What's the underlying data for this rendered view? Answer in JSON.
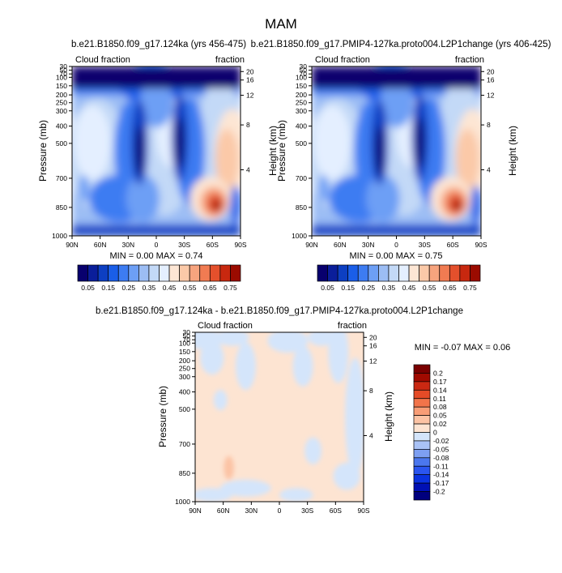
{
  "title": "MAM",
  "colors": {
    "cloud_scale": [
      "#08006e",
      "#0a1e9a",
      "#0d3fc2",
      "#1a5ee8",
      "#3d7cf2",
      "#6d9ff5",
      "#9cbdf4",
      "#c3d9f7",
      "#e4efff",
      "#fde6d4",
      "#fbc9a8",
      "#f7a47e",
      "#f17b52",
      "#e4502c",
      "#c8280f",
      "#9b0b00",
      "#6b0000"
    ],
    "diff_scale": [
      "#00007e",
      "#0010b4",
      "#0a32e0",
      "#2a55f0",
      "#4b77ee",
      "#7d9ff2",
      "#a9c2f6",
      "#d4e5fb",
      "#fde4d2",
      "#fcc3a4",
      "#f89d76",
      "#f2744a",
      "#e54b27",
      "#ca2812",
      "#a00a00",
      "#7a0000"
    ]
  },
  "panels": [
    {
      "id": "case",
      "header": "b.e21.B1850.f09_g17.124ka (yrs 456-475)",
      "left_label": "Cloud fraction",
      "right_label": "fraction",
      "ylabel": "Pressure (mb)",
      "y2label": "Height (km)",
      "stats": "MIN =   0.00  MAX =   0.74"
    },
    {
      "id": "test",
      "header": "b.e21.B1850.f09_g17.PMIP4-127ka.proto004.L2P1change (yrs 406-425)",
      "left_label": "Cloud fraction",
      "right_label": "fraction",
      "ylabel": "Pressure (mb)",
      "y2label": "Height (km)",
      "stats": "MIN =   0.00  MAX =   0.75"
    },
    {
      "id": "diff",
      "header": "b.e21.B1850.f09_g17.124ka - b.e21.B1850.f09_g17.PMIP4-127ka.proto004.L2P1change",
      "left_label": "Cloud fraction",
      "right_label": "fraction",
      "ylabel": "Pressure (mb)",
      "y2label": "Height (km)",
      "stats": "MIN =  -0.07  MAX =   0.06"
    }
  ],
  "chart_data": [
    {
      "type": "heatmap",
      "title": "b.e21.B1850.f09_g17.124ka (yrs 456-475)",
      "xlabel": "",
      "ylabel": "Pressure (mb)",
      "y2label": "Height (km)",
      "x_ticks": [
        "90N",
        "60N",
        "30N",
        "0",
        "30S",
        "60S",
        "90S"
      ],
      "y_ticks": [
        "30",
        "50",
        "70",
        "100",
        "150",
        "200",
        "250",
        "300",
        "400",
        "500",
        "700",
        "850",
        "1000"
      ],
      "y2_ticks": [
        "20",
        "16",
        "12",
        "8",
        "4"
      ],
      "colorbar_labels": [
        "0.05",
        "0.15",
        "0.25",
        "0.35",
        "0.45",
        "0.55",
        "0.65",
        "0.75"
      ],
      "min": 0.0,
      "max": 0.74
    },
    {
      "type": "heatmap",
      "title": "b.e21.B1850.f09_g17.PMIP4-127ka.proto004.L2P1change (yrs 406-425)",
      "xlabel": "",
      "ylabel": "Pressure (mb)",
      "y2label": "Height (km)",
      "x_ticks": [
        "90N",
        "60N",
        "30N",
        "0",
        "30S",
        "60S",
        "90S"
      ],
      "y_ticks": [
        "30",
        "50",
        "70",
        "100",
        "150",
        "200",
        "250",
        "300",
        "400",
        "500",
        "700",
        "850",
        "1000"
      ],
      "y2_ticks": [
        "20",
        "16",
        "12",
        "8",
        "4"
      ],
      "colorbar_labels": [
        "0.05",
        "0.15",
        "0.25",
        "0.35",
        "0.45",
        "0.55",
        "0.65",
        "0.75"
      ],
      "min": 0.0,
      "max": 0.75
    },
    {
      "type": "heatmap",
      "title": "b.e21.B1850.f09_g17.124ka - b.e21.B1850.f09_g17.PMIP4-127ka.proto004.L2P1change",
      "xlabel": "",
      "ylabel": "Pressure (mb)",
      "y2label": "Height (km)",
      "x_ticks": [
        "90N",
        "60N",
        "30N",
        "0",
        "30S",
        "60S",
        "90S"
      ],
      "y_ticks": [
        "30",
        "50",
        "70",
        "100",
        "150",
        "200",
        "250",
        "300",
        "400",
        "500",
        "700",
        "850",
        "1000"
      ],
      "y2_ticks": [
        "20",
        "16",
        "12",
        "8",
        "4"
      ],
      "colorbar_labels": [
        "0.2",
        "0.17",
        "0.14",
        "0.11",
        "0.08",
        "0.05",
        "0.02",
        "0",
        "-0.02",
        "-0.05",
        "-0.08",
        "-0.11",
        "-0.14",
        "-0.17",
        "-0.2"
      ],
      "min": -0.07,
      "max": 0.06
    }
  ]
}
